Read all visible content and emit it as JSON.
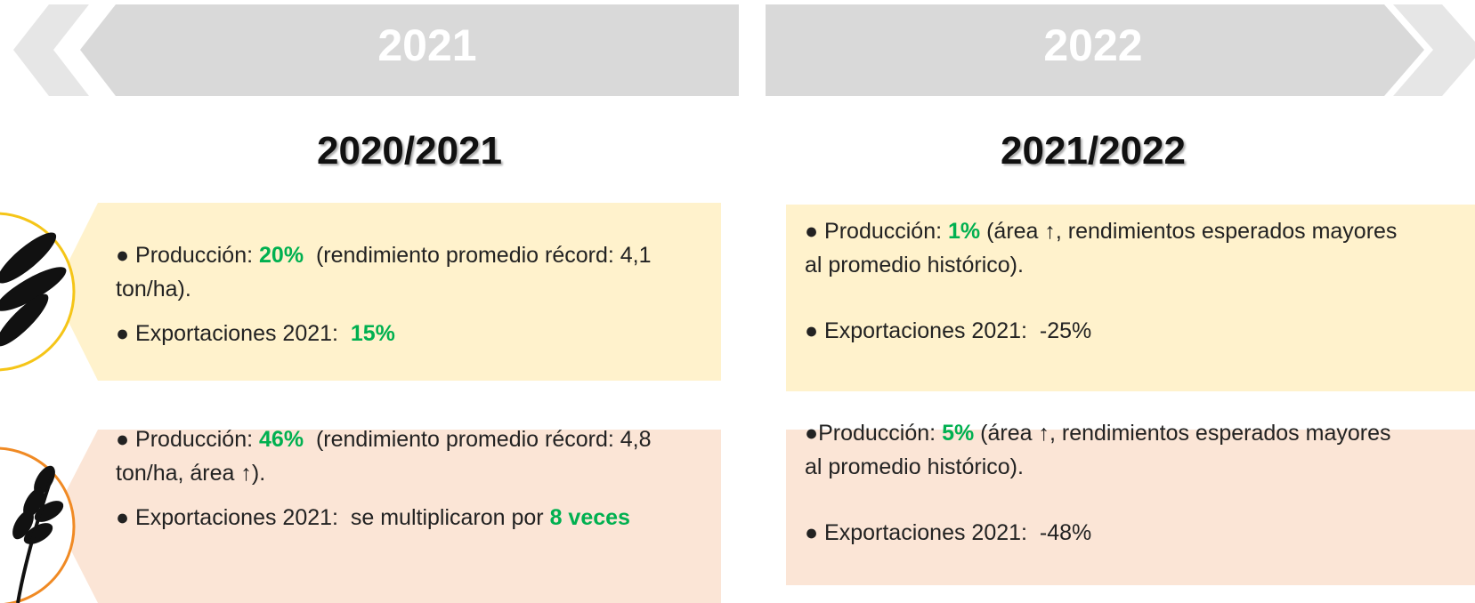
{
  "columns": [
    {
      "banner": "2021",
      "season": "2020/2021",
      "boxes": [
        {
          "items": [
            [
              {
                "text": "● Producción: "
              },
              {
                "text": "20%",
                "color": "#00b050"
              },
              {
                "text": "  (rendimiento promedio récord: 4,1 ton/ha)."
              }
            ],
            [
              {
                "text": "● Exportaciones 2021:  "
              },
              {
                "text": "15%",
                "color": "#00b050"
              }
            ]
          ]
        },
        {
          "items": [
            [
              {
                "text": "● Producción: "
              },
              {
                "text": "46%",
                "color": "#00b050"
              },
              {
                "text": "  (rendimiento promedio récord: 4,8 ton/ha, área ↑)."
              }
            ],
            [
              {
                "text": "● Exportaciones 2021:  se multiplicaron por "
              },
              {
                "text": "8 veces",
                "color": "#00b050"
              }
            ]
          ]
        }
      ]
    },
    {
      "banner": "2022",
      "season": "2021/2022",
      "boxes": [
        {
          "items": [
            [
              {
                "text": "● Producción: "
              },
              {
                "text": "1%",
                "color": "#00b050"
              },
              {
                "text": " (área ↑, rendimientos esperados mayores al promedio histórico)."
              }
            ],
            [
              {
                "text": "● Exportaciones 2021:  -25%"
              }
            ]
          ]
        },
        {
          "items": [
            [
              {
                "text": "●Producción: "
              },
              {
                "text": "5%",
                "color": "#00b050"
              },
              {
                "text": " (área ↑, rendimientos esperados mayores al promedio histórico)."
              }
            ],
            [
              {
                "text": "● Exportaciones 2021:  -48%"
              }
            ]
          ]
        }
      ]
    }
  ]
}
